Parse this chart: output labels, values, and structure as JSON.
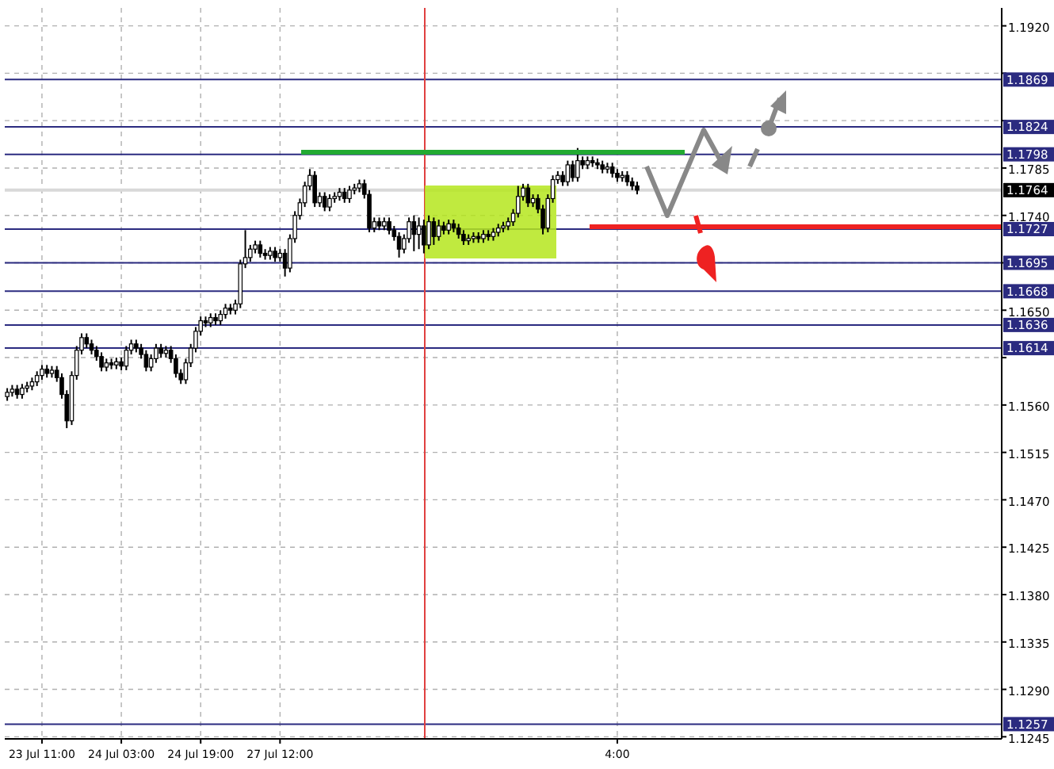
{
  "chart_data": {
    "type": "candlestick",
    "categories": [
      null,
      null,
      null,
      null,
      null,
      null,
      null,
      "23 Jul 11:00",
      null,
      null,
      null,
      null,
      null,
      null,
      null,
      null,
      null,
      null,
      null,
      null,
      null,
      null,
      null,
      "24 Jul 03:00",
      null,
      null,
      null,
      null,
      null,
      null,
      null,
      null,
      null,
      null,
      null,
      null,
      null,
      null,
      null,
      "24 Jul 19:00",
      null,
      null,
      null,
      null,
      null,
      null,
      null,
      null,
      null,
      null,
      null,
      null,
      null,
      null,
      null,
      "27 Jul 12:00",
      null,
      null,
      null,
      null,
      null,
      null,
      null,
      null,
      null,
      null,
      null,
      null,
      null,
      null,
      null,
      null,
      null,
      null,
      null,
      null,
      null,
      null,
      null,
      null,
      null,
      null,
      null,
      null,
      null,
      null,
      null,
      null,
      null,
      null,
      null,
      null,
      null,
      null,
      null,
      null,
      null,
      null,
      null,
      null,
      null,
      null,
      null,
      null,
      null,
      null,
      null,
      null,
      null,
      null,
      null,
      null,
      null,
      null,
      null,
      null,
      null,
      null,
      null,
      null,
      null,
      null,
      null,
      "4:00",
      null,
      null,
      null,
      null,
      null,
      null,
      null,
      null,
      null,
      null,
      null,
      null,
      null,
      null,
      null,
      null,
      null,
      null,
      null,
      null,
      null,
      null,
      null,
      null,
      null,
      null,
      null,
      null,
      null,
      null,
      null,
      null,
      null,
      null,
      null,
      null,
      null,
      null,
      null,
      null,
      null,
      null,
      null,
      null,
      null,
      null,
      null,
      null,
      null,
      null,
      null,
      null,
      null,
      null,
      null,
      null,
      null,
      null,
      null,
      null,
      null,
      null,
      null,
      null,
      null,
      null,
      null,
      null,
      null,
      null,
      null,
      null,
      null,
      null,
      null,
      null,
      null
    ],
    "ohlc": [
      [
        1.1568,
        1.1576,
        1.1564,
        1.1572
      ],
      [
        1.1572,
        1.1579,
        1.1568,
        1.1575
      ],
      [
        1.1575,
        1.1579,
        1.1566,
        1.157
      ],
      [
        1.157,
        1.158,
        1.1566,
        1.1576
      ],
      [
        1.1576,
        1.1582,
        1.1572,
        1.1578
      ],
      [
        1.1578,
        1.1586,
        1.1574,
        1.1582
      ],
      [
        1.1582,
        1.1592,
        1.1578,
        1.1588
      ],
      [
        1.1588,
        1.1598,
        1.1584,
        1.1594
      ],
      [
        1.1594,
        1.1598,
        1.1586,
        1.159
      ],
      [
        1.159,
        1.1597,
        1.1586,
        1.1593
      ],
      [
        1.1593,
        1.1597,
        1.1582,
        1.1586
      ],
      [
        1.1586,
        1.159,
        1.1566,
        1.157
      ],
      [
        1.157,
        1.1574,
        1.1538,
        1.1545
      ],
      [
        1.1545,
        1.1592,
        1.1541,
        1.1588
      ],
      [
        1.1588,
        1.1616,
        1.1584,
        1.1612
      ],
      [
        1.1612,
        1.1628,
        1.1608,
        1.1624
      ],
      [
        1.1624,
        1.1628,
        1.1614,
        1.1618
      ],
      [
        1.1618,
        1.1622,
        1.1608,
        1.1612
      ],
      [
        1.1612,
        1.1616,
        1.1602,
        1.1606
      ],
      [
        1.1606,
        1.161,
        1.1592,
        1.1596
      ],
      [
        1.1596,
        1.1604,
        1.1592,
        1.16
      ],
      [
        1.16,
        1.1604,
        1.1594,
        1.1598
      ],
      [
        1.1598,
        1.1605,
        1.1594,
        1.1601
      ],
      [
        1.1601,
        1.1605,
        1.1593,
        1.1597
      ],
      [
        1.1597,
        1.1616,
        1.1593,
        1.1612
      ],
      [
        1.1612,
        1.1622,
        1.1608,
        1.1618
      ],
      [
        1.1618,
        1.1622,
        1.161,
        1.1614
      ],
      [
        1.1614,
        1.1618,
        1.1604,
        1.1608
      ],
      [
        1.1608,
        1.1612,
        1.1592,
        1.1596
      ],
      [
        1.1596,
        1.1608,
        1.1592,
        1.1604
      ],
      [
        1.1604,
        1.1618,
        1.16,
        1.1614
      ],
      [
        1.1614,
        1.1618,
        1.1605,
        1.1609
      ],
      [
        1.1609,
        1.1616,
        1.1605,
        1.1612
      ],
      [
        1.1612,
        1.1616,
        1.16,
        1.1604
      ],
      [
        1.1604,
        1.1608,
        1.1586,
        1.159
      ],
      [
        1.159,
        1.1594,
        1.158,
        1.1584
      ],
      [
        1.1584,
        1.1604,
        1.158,
        1.16
      ],
      [
        1.16,
        1.1618,
        1.1596,
        1.1614
      ],
      [
        1.1614,
        1.1634,
        1.161,
        1.163
      ],
      [
        1.163,
        1.1644,
        1.1626,
        1.164
      ],
      [
        1.164,
        1.1644,
        1.1634,
        1.1638
      ],
      [
        1.1638,
        1.1647,
        1.1634,
        1.1643
      ],
      [
        1.1643,
        1.1647,
        1.1636,
        1.164
      ],
      [
        1.164,
        1.165,
        1.1636,
        1.1646
      ],
      [
        1.1646,
        1.1656,
        1.1642,
        1.1652
      ],
      [
        1.1652,
        1.1656,
        1.1646,
        1.165
      ],
      [
        1.165,
        1.166,
        1.1646,
        1.1656
      ],
      [
        1.1656,
        1.1698,
        1.1652,
        1.1694
      ],
      [
        1.1694,
        1.1726,
        1.169,
        1.17
      ],
      [
        1.17,
        1.1712,
        1.1696,
        1.1708
      ],
      [
        1.1708,
        1.1716,
        1.1704,
        1.1712
      ],
      [
        1.1712,
        1.1716,
        1.17,
        1.1704
      ],
      [
        1.1704,
        1.1708,
        1.1698,
        1.1702
      ],
      [
        1.1702,
        1.171,
        1.1698,
        1.1706
      ],
      [
        1.1706,
        1.171,
        1.1696,
        1.17
      ],
      [
        1.17,
        1.1708,
        1.1696,
        1.1704
      ],
      [
        1.1704,
        1.1708,
        1.1682,
        1.169
      ],
      [
        1.169,
        1.1722,
        1.1686,
        1.1718
      ],
      [
        1.1718,
        1.1744,
        1.1714,
        1.174
      ],
      [
        1.174,
        1.1756,
        1.1736,
        1.1752
      ],
      [
        1.1752,
        1.1772,
        1.1748,
        1.1768
      ],
      [
        1.1768,
        1.1784,
        1.1764,
        1.1778
      ],
      [
        1.1778,
        1.1782,
        1.1748,
        1.1752
      ],
      [
        1.1752,
        1.1762,
        1.1748,
        1.1758
      ],
      [
        1.1758,
        1.1762,
        1.1744,
        1.1748
      ],
      [
        1.1748,
        1.176,
        1.1744,
        1.1756
      ],
      [
        1.1756,
        1.1762,
        1.1752,
        1.1758
      ],
      [
        1.1758,
        1.1766,
        1.1754,
        1.1762
      ],
      [
        1.1762,
        1.1766,
        1.1752,
        1.1756
      ],
      [
        1.1756,
        1.1768,
        1.1752,
        1.1764
      ],
      [
        1.1764,
        1.177,
        1.176,
        1.1766
      ],
      [
        1.1766,
        1.1774,
        1.1762,
        1.177
      ],
      [
        1.177,
        1.1774,
        1.1756,
        1.176
      ],
      [
        1.176,
        1.1764,
        1.1724,
        1.1728
      ],
      [
        1.1728,
        1.1738,
        1.1724,
        1.1734
      ],
      [
        1.1734,
        1.1738,
        1.1726,
        1.173
      ],
      [
        1.173,
        1.1738,
        1.1726,
        1.1734
      ],
      [
        1.1734,
        1.1738,
        1.1722,
        1.1726
      ],
      [
        1.1726,
        1.173,
        1.1716,
        1.172
      ],
      [
        1.172,
        1.1724,
        1.17,
        1.1708
      ],
      [
        1.1708,
        1.1722,
        1.1704,
        1.1718
      ],
      [
        1.1718,
        1.1738,
        1.1714,
        1.1734
      ],
      [
        1.1734,
        1.174,
        1.1706,
        1.1722
      ],
      [
        1.1722,
        1.1738,
        1.1708,
        1.173
      ],
      [
        1.173,
        1.1736,
        1.1704,
        1.1712
      ],
      [
        1.1712,
        1.174,
        1.1708,
        1.1734
      ],
      [
        1.1734,
        1.1738,
        1.1712,
        1.172
      ],
      [
        1.172,
        1.1736,
        1.1716,
        1.173
      ],
      [
        1.173,
        1.1734,
        1.1722,
        1.1726
      ],
      [
        1.1726,
        1.1736,
        1.1722,
        1.1732
      ],
      [
        1.1732,
        1.1736,
        1.1724,
        1.1728
      ],
      [
        1.1728,
        1.1732,
        1.1718,
        1.1722
      ],
      [
        1.1722,
        1.1726,
        1.1712,
        1.1716
      ],
      [
        1.1716,
        1.1722,
        1.1712,
        1.1718
      ],
      [
        1.1718,
        1.1724,
        1.1714,
        1.172
      ],
      [
        1.172,
        1.1724,
        1.1714,
        1.1718
      ],
      [
        1.1718,
        1.1726,
        1.1714,
        1.1722
      ],
      [
        1.1722,
        1.1726,
        1.1716,
        1.172
      ],
      [
        1.172,
        1.1728,
        1.1716,
        1.1724
      ],
      [
        1.1724,
        1.1732,
        1.172,
        1.1728
      ],
      [
        1.1728,
        1.1734,
        1.1724,
        1.173
      ],
      [
        1.173,
        1.1738,
        1.1726,
        1.1734
      ],
      [
        1.1734,
        1.1746,
        1.173,
        1.1742
      ],
      [
        1.1742,
        1.1768,
        1.1738,
        1.1758
      ],
      [
        1.1758,
        1.177,
        1.1754,
        1.1766
      ],
      [
        1.1766,
        1.177,
        1.1748,
        1.1752
      ],
      [
        1.1752,
        1.176,
        1.1748,
        1.1756
      ],
      [
        1.1756,
        1.176,
        1.1742,
        1.1746
      ],
      [
        1.1746,
        1.175,
        1.1722,
        1.1728
      ],
      [
        1.1728,
        1.176,
        1.1724,
        1.1756
      ],
      [
        1.1756,
        1.1778,
        1.1752,
        1.1774
      ],
      [
        1.1774,
        1.1782,
        1.177,
        1.1778
      ],
      [
        1.1778,
        1.1782,
        1.1768,
        1.1772
      ],
      [
        1.1772,
        1.1792,
        1.1768,
        1.1788
      ],
      [
        1.1788,
        1.1792,
        1.1772,
        1.1776
      ],
      [
        1.1776,
        1.1804,
        1.1772,
        1.1792
      ],
      [
        1.1792,
        1.1796,
        1.1784,
        1.1788
      ],
      [
        1.1788,
        1.1796,
        1.1784,
        1.1792
      ],
      [
        1.1792,
        1.1796,
        1.1786,
        1.179
      ],
      [
        1.179,
        1.1794,
        1.1784,
        1.1788
      ],
      [
        1.1788,
        1.1792,
        1.178,
        1.1784
      ],
      [
        1.1784,
        1.179,
        1.178,
        1.1786
      ],
      [
        1.1786,
        1.179,
        1.1776,
        1.178
      ],
      [
        1.178,
        1.1784,
        1.1772,
        1.1776
      ],
      [
        1.1776,
        1.1782,
        1.1772,
        1.1778
      ],
      [
        1.1778,
        1.1782,
        1.1768,
        1.1772
      ],
      [
        1.1772,
        1.1776,
        1.1764,
        1.1768
      ],
      [
        1.1768,
        1.1772,
        1.176,
        1.1764
      ],
      null,
      null,
      null,
      null,
      null,
      null,
      null,
      null,
      null,
      null,
      null,
      null,
      null,
      null,
      null,
      null,
      null,
      null,
      null,
      null,
      null,
      null,
      null,
      null,
      null,
      null,
      null,
      null,
      null,
      null,
      null,
      null,
      null,
      null,
      null,
      null,
      null,
      null,
      null,
      null,
      null,
      null,
      null,
      null,
      null,
      null,
      null,
      null,
      null,
      null,
      null,
      null,
      null,
      null,
      null,
      null,
      null,
      null,
      null,
      null,
      null,
      null,
      null,
      null,
      null,
      null,
      null,
      null,
      null,
      null,
      null,
      null,
      null
    ],
    "ylim": [
      1.1243,
      1.1937
    ],
    "yticks": [
      {
        "value": 1.192,
        "label": "1.1920"
      },
      {
        "value": 1.1875,
        "label": null
      },
      {
        "value": 1.183,
        "label": null
      },
      1.1785,
      {
        "value": 1.174,
        "label": "1.1740"
      },
      {
        "value": 1.1695,
        "label": null
      },
      {
        "value": 1.165,
        "label": "1.1650"
      },
      {
        "value": 1.1605,
        "label": null
      },
      {
        "value": 1.156,
        "label": "1.1560"
      },
      1.1515,
      {
        "value": 1.147,
        "label": "1.1470"
      },
      1.1425,
      {
        "value": 1.138,
        "label": "1.1380"
      },
      1.1335,
      {
        "value": 1.129,
        "label": "1.1290"
      },
      1.1245
    ],
    "grid": true,
    "ref_lines": [
      {
        "axis": "y",
        "value": 1.1869,
        "label": "1.1869",
        "color": "#2b2b80"
      },
      {
        "axis": "y",
        "value": 1.1824,
        "label": "1.1824",
        "color": "#2b2b80"
      },
      {
        "axis": "y",
        "value": 1.1798,
        "label": "1.1798",
        "color": "#2b2b80"
      },
      {
        "axis": "y",
        "value": 1.1764,
        "label": "1.1764",
        "color": "#d9d9d9"
      },
      {
        "axis": "y",
        "value": 1.1727,
        "label": "1.1727",
        "color": "#2b2b80"
      },
      {
        "axis": "y",
        "value": 1.1695,
        "label": "1.1695",
        "color": "#2b2b80"
      },
      {
        "axis": "y",
        "value": 1.1668,
        "label": "1.1668",
        "color": "#2b2b80"
      },
      {
        "axis": "y",
        "value": 1.1636,
        "label": "1.1636",
        "color": "#2b2b80"
      },
      {
        "axis": "y",
        "value": 1.1614,
        "label": "1.1614",
        "color": "#2b2b80"
      },
      {
        "axis": "y",
        "value": 1.1257,
        "label": "1.1257",
        "color": "#2b2b80"
      }
    ]
  }
}
